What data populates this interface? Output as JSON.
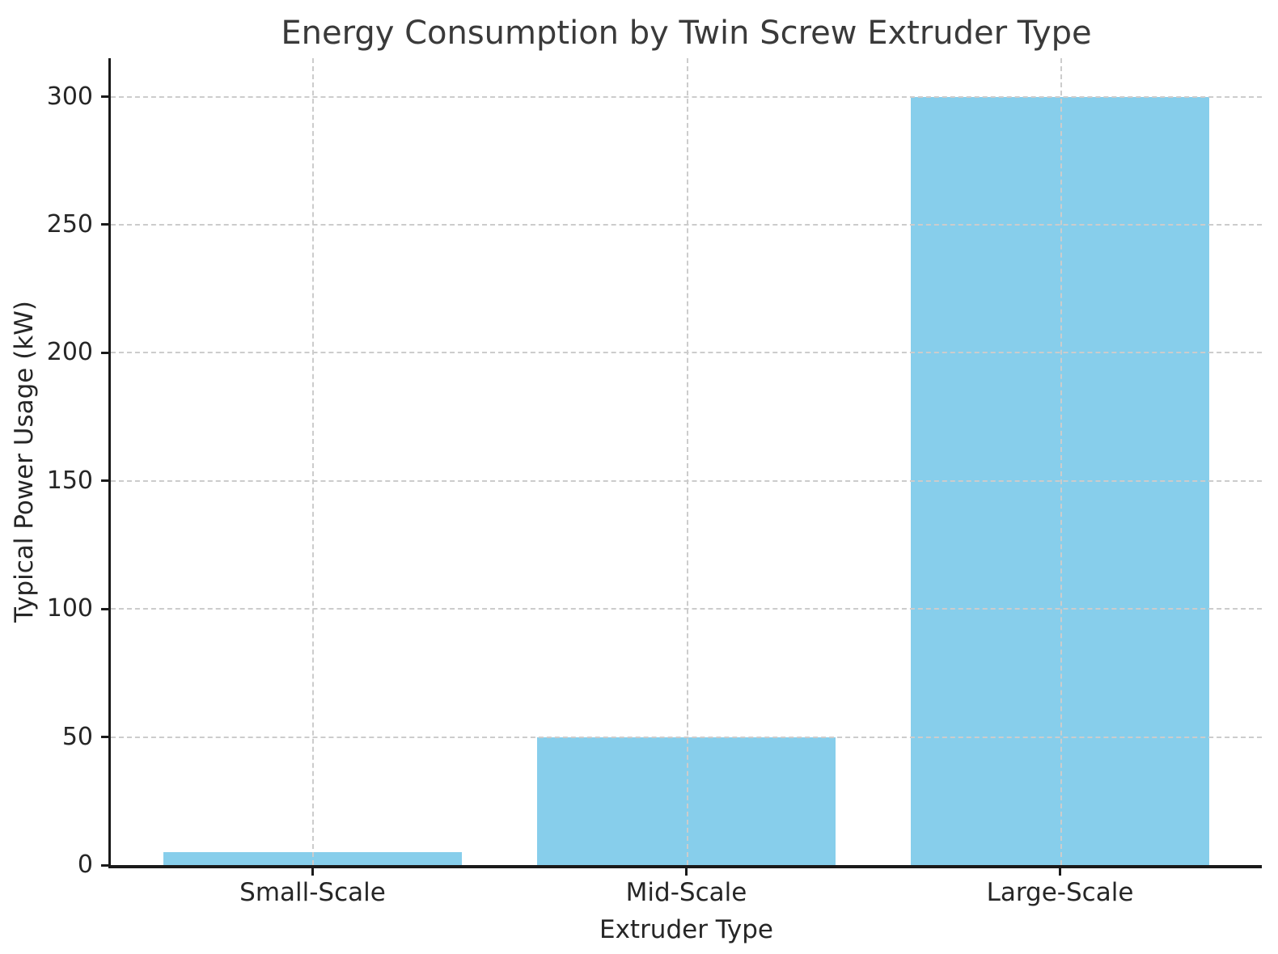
{
  "chart_data": {
    "type": "bar",
    "title": "Energy Consumption by Twin Screw Extruder Type",
    "xlabel": "Extruder Type",
    "ylabel": "Typical Power Usage (kW)",
    "categories": [
      "Small-Scale",
      "Mid-Scale",
      "Large-Scale"
    ],
    "values": [
      5,
      50,
      300
    ],
    "yticks": [
      0,
      50,
      100,
      150,
      200,
      250,
      300
    ],
    "ylim": [
      0,
      315
    ],
    "grid": true,
    "legend": "none",
    "bar_color": "#87CEEB",
    "grid_color": "#cccccc",
    "spine_color": "#1a1a1a",
    "title_color": "#3a3a3a",
    "tick_color": "#262626"
  }
}
